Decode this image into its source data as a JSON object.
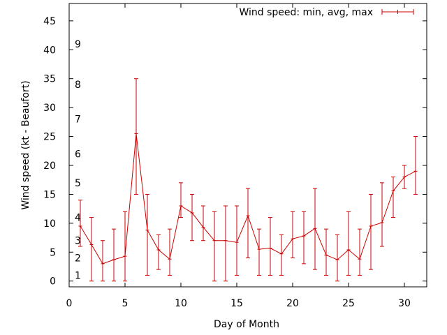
{
  "chart_data": {
    "type": "line",
    "title": "",
    "xlabel": "Day of Month",
    "ylabel": "Wind speed (kt - Beaufort)",
    "xlim": [
      0,
      32
    ],
    "ylim": [
      -1,
      48
    ],
    "x_ticks": [
      0,
      5,
      10,
      15,
      20,
      25,
      30
    ],
    "y_ticks": [
      0,
      5,
      10,
      15,
      20,
      25,
      30,
      35,
      40,
      45
    ],
    "grid": false,
    "legend": "top-right",
    "series_color": "#cc0000",
    "beaufort_labels": [
      {
        "label": "1",
        "y": 1
      },
      {
        "label": "2",
        "y": 4
      },
      {
        "label": "3",
        "y": 7
      },
      {
        "label": "4",
        "y": 11
      },
      {
        "label": "5",
        "y": 17
      },
      {
        "label": "6",
        "y": 22
      },
      {
        "label": "7",
        "y": 28
      },
      {
        "label": "8",
        "y": 34
      },
      {
        "label": "9",
        "y": 41
      }
    ],
    "series": [
      {
        "name": "Wind speed: min, avg, max",
        "x": [
          1,
          2,
          3,
          4,
          5,
          6,
          7,
          8,
          9,
          10,
          11,
          12,
          13,
          14,
          15,
          16,
          17,
          18,
          19,
          20,
          21,
          22,
          23,
          24,
          25,
          26,
          27,
          28,
          29,
          30,
          31
        ],
        "avg": [
          9.5,
          6.3,
          3.0,
          3.7,
          4.3,
          25.5,
          8.8,
          5.4,
          3.8,
          13.0,
          11.8,
          9.3,
          7.0,
          7.0,
          6.7,
          11.3,
          5.5,
          5.7,
          4.7,
          7.3,
          7.8,
          9.1,
          4.5,
          3.7,
          5.4,
          3.8,
          9.5,
          10.1,
          15.6,
          18.0,
          19.0
        ],
        "min": [
          6,
          0,
          0,
          0,
          0,
          15,
          1,
          2,
          1,
          11,
          7,
          7,
          0,
          0,
          1,
          4,
          1,
          1,
          1,
          4,
          3,
          2,
          1,
          0,
          1,
          1,
          2,
          6,
          11,
          16,
          15
        ],
        "max": [
          14,
          11,
          7,
          9,
          12,
          35,
          15,
          8,
          9,
          17,
          15,
          13,
          12,
          13,
          13,
          16,
          9,
          11,
          8,
          12,
          12,
          16,
          9,
          8,
          12,
          9,
          15,
          17,
          18,
          20,
          25
        ]
      }
    ]
  }
}
